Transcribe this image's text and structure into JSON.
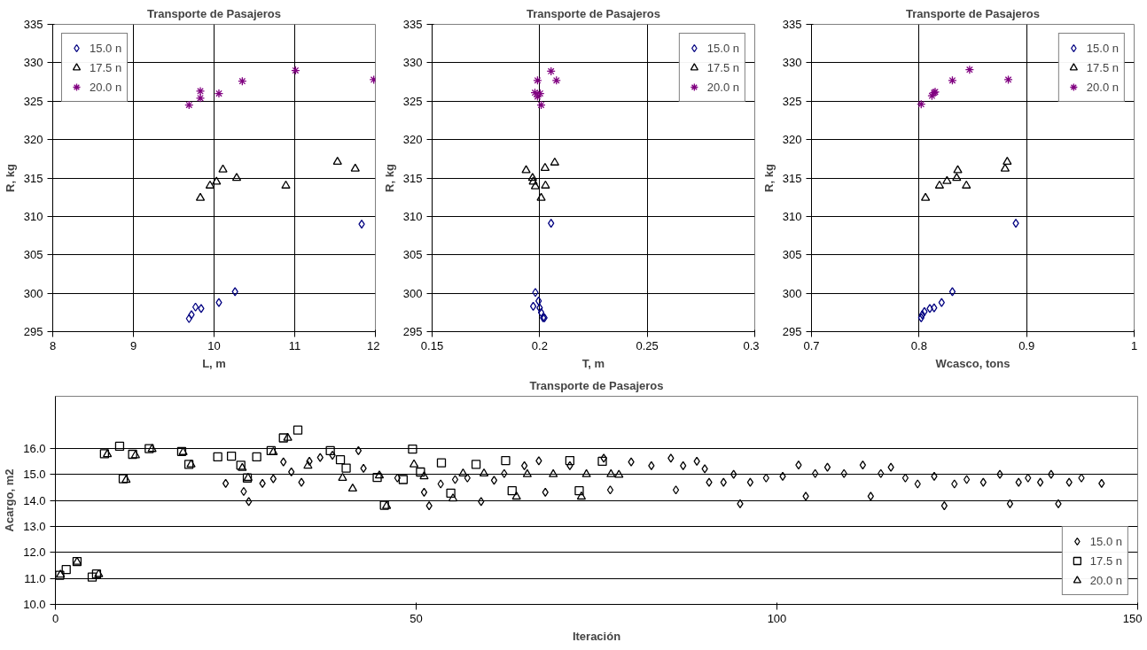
{
  "chart_data": [
    {
      "type": "scatter",
      "title": "Transporte de Pasajeros",
      "xlabel": "L, m",
      "ylabel": "R, kg",
      "xlim": [
        8,
        12
      ],
      "xticks": [
        8,
        9,
        10,
        11,
        12
      ],
      "ylim": [
        295,
        335
      ],
      "yticks": [
        295,
        300,
        305,
        310,
        315,
        320,
        325,
        330,
        335
      ],
      "grid": true,
      "legend": "top left",
      "series": [
        {
          "name": "15.0 n",
          "color": "#000080",
          "marker": "diamond",
          "x": [
            9.69,
            9.72,
            9.77,
            9.84,
            10.06,
            10.26,
            11.83
          ],
          "values": [
            296.7,
            297.2,
            298.2,
            298.0,
            298.8,
            300.2,
            309.0
          ]
        },
        {
          "name": "17.5 n",
          "color": "#000000",
          "marker": "triangle",
          "x": [
            9.83,
            9.95,
            10.03,
            10.11,
            10.28,
            10.89,
            11.53,
            11.75
          ],
          "values": [
            312.4,
            314.0,
            314.5,
            316.1,
            315.0,
            314.0,
            317.1,
            316.2
          ]
        },
        {
          "name": "20.0 n",
          "color": "#800080",
          "marker": "cross",
          "x": [
            9.69,
            9.83,
            9.83,
            10.06,
            10.35,
            11.01,
            11.98
          ],
          "values": [
            324.5,
            326.3,
            325.4,
            326.0,
            327.6,
            329.0,
            327.8
          ]
        }
      ]
    },
    {
      "type": "scatter",
      "title": "Transporte de Pasajeros",
      "xlabel": "T, m",
      "ylabel": "R, kg",
      "xlim": [
        0.15,
        0.3
      ],
      "xticks": [
        0.15,
        0.2,
        0.25,
        0.3
      ],
      "ylim": [
        295,
        335
      ],
      "yticks": [
        295,
        300,
        305,
        310,
        315,
        320,
        325,
        330,
        335
      ],
      "grid": true,
      "legend": "top right",
      "series": [
        {
          "name": "15.0 n",
          "color": "#000080",
          "marker": "diamond",
          "x": [
            0.198,
            0.1995,
            0.197,
            0.2,
            0.2007,
            0.2016,
            0.2022,
            0.2053
          ],
          "values": [
            300.1,
            299.0,
            298.3,
            298.1,
            297.5,
            296.8,
            296.8,
            309.1
          ]
        },
        {
          "name": "17.5 n",
          "color": "#000000",
          "marker": "triangle",
          "x": [
            0.1937,
            0.1967,
            0.197,
            0.198,
            0.2007,
            0.2025,
            0.2027,
            0.207
          ],
          "values": [
            316.0,
            315.0,
            314.5,
            313.9,
            312.4,
            316.3,
            314.0,
            317.0
          ]
        },
        {
          "name": "20.0 n",
          "color": "#800080",
          "marker": "cross",
          "x": [
            0.199,
            0.1978,
            0.2002,
            0.199,
            0.2007,
            0.2053,
            0.2078
          ],
          "values": [
            327.7,
            326.1,
            326.0,
            325.6,
            324.5,
            328.9,
            327.7
          ]
        }
      ]
    },
    {
      "type": "scatter",
      "title": "Transporte de Pasajeros",
      "xlabel": "Wcasco, tons",
      "ylabel": "R, kg",
      "xlim": [
        0.7,
        1.0
      ],
      "xticks": [
        0.7,
        0.8,
        0.9,
        {
          "value": 1.0,
          "label": "1"
        }
      ],
      "ylim": [
        295,
        335
      ],
      "yticks": [
        295,
        300,
        305,
        310,
        315,
        320,
        325,
        330,
        335
      ],
      "grid": true,
      "legend": "top right",
      "series": [
        {
          "name": "15.0 n",
          "color": "#000080",
          "marker": "diamond",
          "x": [
            0.802,
            0.803,
            0.805,
            0.81,
            0.814,
            0.821,
            0.831,
            0.89
          ],
          "values": [
            296.8,
            297.2,
            297.6,
            298.0,
            298.1,
            298.8,
            300.2,
            309.1
          ]
        },
        {
          "name": "17.5 n",
          "color": "#000000",
          "marker": "triangle",
          "x": [
            0.806,
            0.819,
            0.826,
            0.835,
            0.836,
            0.844,
            0.88,
            0.882
          ],
          "values": [
            312.4,
            314.0,
            314.6,
            315.0,
            316.0,
            314.0,
            316.2,
            317.1
          ]
        },
        {
          "name": "20.0 n",
          "color": "#800080",
          "marker": "cross",
          "x": [
            0.802,
            0.812,
            0.814,
            0.815,
            0.831,
            0.847,
            0.883
          ],
          "values": [
            324.6,
            325.7,
            326.1,
            326.2,
            327.7,
            329.1,
            327.8
          ]
        }
      ]
    },
    {
      "type": "scatter",
      "title": "Transporte de Pasajeros",
      "xlabel": "Iteración",
      "ylabel": "Acargo, m2",
      "xlim": [
        0,
        150
      ],
      "xticks": [
        0,
        50,
        100,
        150
      ],
      "ylim": [
        10,
        18
      ],
      "yticks": [
        {
          "value": 10,
          "label": "10.0"
        },
        {
          "value": 11,
          "label": "11.0"
        },
        {
          "value": 12,
          "label": "12.0"
        },
        {
          "value": 13,
          "label": "13.0"
        },
        {
          "value": 14,
          "label": "14.0"
        },
        {
          "value": 15,
          "label": "15.0"
        },
        {
          "value": 16,
          "label": "16.0"
        }
      ],
      "grid": "y",
      "legend": "bottom right",
      "series": [
        {
          "name": "15.0 n",
          "color": "#000000",
          "marker": "diamond",
          "x": [
            23.6,
            26.1,
            26.8,
            28.7,
            30.2,
            31.6,
            32.7,
            34.1,
            35.2,
            36.7,
            38.4,
            42,
            42.7,
            47.4,
            51.1,
            51.8,
            53.4,
            55.4,
            57.1,
            59,
            60.8,
            62.2,
            65,
            67,
            67.9,
            71.3,
            76,
            76.9,
            79.8,
            82.6,
            85.3,
            86,
            87,
            88.9,
            90,
            90.6,
            92.6,
            94,
            94.9,
            96.3,
            98.5,
            100.8,
            103,
            104,
            105.3,
            107,
            109.3,
            111.9,
            113,
            114.4,
            115.8,
            117.8,
            119.5,
            121.8,
            123.2,
            124.6,
            126.3,
            128.6,
            130.9,
            132.3,
            133.5,
            134.8,
            136.5,
            138,
            139,
            140.5,
            142.2,
            145
          ],
          "values": [
            14.65,
            14.34,
            13.95,
            14.65,
            14.83,
            15.48,
            15.09,
            14.69,
            15.5,
            15.65,
            15.73,
            15.91,
            15.23,
            14.86,
            14.31,
            13.79,
            14.63,
            14.8,
            14.86,
            13.95,
            14.77,
            15.03,
            15.33,
            15.52,
            14.31,
            15.33,
            15.62,
            14.4,
            15.48,
            15.33,
            15.62,
            14.4,
            15.33,
            15.5,
            15.21,
            14.69,
            14.69,
            15.0,
            13.87,
            14.69,
            14.86,
            14.92,
            15.36,
            14.16,
            15.03,
            15.27,
            15.03,
            15.36,
            14.16,
            15.03,
            15.27,
            14.86,
            14.63,
            14.92,
            13.79,
            14.63,
            14.8,
            14.69,
            15.0,
            13.87,
            14.69,
            14.86,
            14.69,
            15.0,
            13.87,
            14.69,
            14.86,
            14.65
          ]
        },
        {
          "name": "17.5 n",
          "color": "#000000",
          "marker": "square",
          "x": [
            0.6,
            1.5,
            3,
            5.1,
            5.7,
            6.8,
            8.9,
            9.4,
            10.7,
            13,
            17.5,
            18.5,
            22.5,
            24.4,
            25.7,
            26.6,
            27.9,
            29.9,
            31.6,
            33.6,
            38.1,
            39.5,
            40.3,
            44.6,
            45.6,
            48.2,
            49.5,
            50.6,
            53.5,
            54.8,
            58.3,
            62.4,
            63.3,
            71.3,
            72.6,
            75.8
          ],
          "values": [
            11.12,
            11.34,
            11.65,
            11.05,
            11.17,
            15.79,
            16.08,
            14.83,
            15.77,
            15.99,
            15.88,
            15.38,
            15.67,
            15.7,
            15.35,
            14.86,
            15.67,
            15.91,
            16.4,
            16.7,
            15.91,
            15.56,
            15.24,
            14.88,
            13.81,
            14.8,
            15.97,
            15.09,
            15.44,
            14.28,
            15.38,
            15.53,
            14.37,
            15.53,
            14.37,
            15.5
          ]
        },
        {
          "name": "20.0 n",
          "color": "#000000",
          "marker": "triangle",
          "x": [
            0.7,
            3,
            6,
            7.2,
            9.8,
            11.1,
            13.4,
            17.7,
            18.8,
            25.9,
            26.7,
            30.2,
            32.2,
            35,
            39.8,
            41.2,
            44.9,
            45.9,
            49.7,
            51.1,
            55.1,
            56.5,
            59.4,
            63.9,
            65.4,
            69,
            72.9,
            73.6,
            77,
            78.1
          ],
          "values": [
            11.14,
            11.63,
            11.16,
            15.77,
            14.78,
            15.73,
            15.97,
            15.85,
            15.38,
            15.24,
            14.86,
            15.85,
            16.4,
            15.33,
            14.86,
            14.45,
            14.95,
            13.78,
            15.38,
            14.92,
            14.07,
            15.03,
            15.03,
            14.14,
            15.0,
            15.0,
            14.14,
            15.0,
            15.0,
            14.98
          ]
        }
      ]
    }
  ]
}
